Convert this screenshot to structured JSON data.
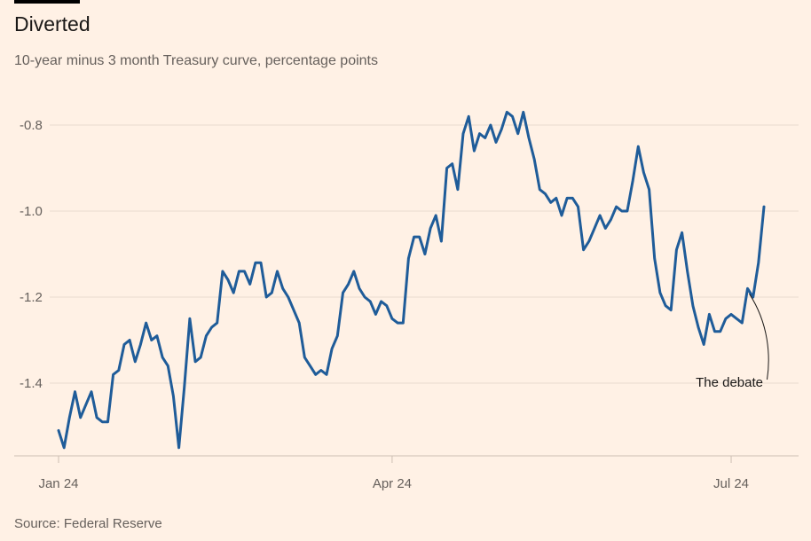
{
  "title": "Diverted",
  "subtitle": "10-year minus 3 month Treasury curve, percentage points",
  "source": "Source: Federal Reserve",
  "colors": {
    "background": "#fff1e5",
    "line": "#1f5c99",
    "grid": "#e9dccf",
    "axis": "#cdbfb3"
  },
  "chart_data": {
    "type": "line",
    "title": "Diverted",
    "subtitle": "10-year minus 3 month Treasury curve, percentage points",
    "xlabel": "",
    "ylabel": "",
    "ylim": [
      -1.56,
      -0.76
    ],
    "grid": true,
    "y_ticks": [
      {
        "value": -0.8,
        "label": "-0.8"
      },
      {
        "value": -1.0,
        "label": "-1.0"
      },
      {
        "value": -1.2,
        "label": "-1.2"
      },
      {
        "value": -1.4,
        "label": "-1.4"
      }
    ],
    "x_ticks": [
      {
        "index": 0,
        "label": "Jan 24"
      },
      {
        "index": 61,
        "label": "Apr 24"
      },
      {
        "index": 123,
        "label": "Jul 24"
      }
    ],
    "series": [
      {
        "values": [
          -1.51,
          -1.55,
          -1.48,
          -1.42,
          -1.48,
          -1.45,
          -1.42,
          -1.48,
          -1.49,
          -1.49,
          -1.38,
          -1.37,
          -1.31,
          -1.3,
          -1.35,
          -1.31,
          -1.26,
          -1.3,
          -1.29,
          -1.34,
          -1.36,
          -1.43,
          -1.55,
          -1.41,
          -1.25,
          -1.35,
          -1.34,
          -1.29,
          -1.27,
          -1.26,
          -1.14,
          -1.16,
          -1.19,
          -1.14,
          -1.14,
          -1.17,
          -1.12,
          -1.12,
          -1.2,
          -1.19,
          -1.14,
          -1.18,
          -1.2,
          -1.23,
          -1.26,
          -1.34,
          -1.36,
          -1.38,
          -1.37,
          -1.38,
          -1.32,
          -1.29,
          -1.19,
          -1.17,
          -1.14,
          -1.18,
          -1.2,
          -1.21,
          -1.24,
          -1.21,
          -1.22,
          -1.25,
          -1.26,
          -1.26,
          -1.11,
          -1.06,
          -1.06,
          -1.1,
          -1.04,
          -1.01,
          -1.07,
          -0.9,
          -0.89,
          -0.95,
          -0.82,
          -0.78,
          -0.86,
          -0.82,
          -0.83,
          -0.8,
          -0.84,
          -0.81,
          -0.77,
          -0.78,
          -0.82,
          -0.77,
          -0.83,
          -0.88,
          -0.95,
          -0.96,
          -0.98,
          -0.97,
          -1.01,
          -0.97,
          -0.97,
          -0.99,
          -1.09,
          -1.07,
          -1.04,
          -1.01,
          -1.04,
          -1.02,
          -0.99,
          -1.0,
          -1.0,
          -0.93,
          -0.85,
          -0.91,
          -0.95,
          -1.11,
          -1.19,
          -1.22,
          -1.23,
          -1.09,
          -1.05,
          -1.14,
          -1.22,
          -1.27,
          -1.31,
          -1.24,
          -1.28,
          -1.28,
          -1.25,
          -1.24,
          -1.25,
          -1.26,
          -1.18,
          -1.2,
          -1.12,
          -0.99
        ]
      }
    ],
    "annotations": [
      {
        "text": "The debate",
        "index": 126,
        "value": -1.18
      }
    ]
  }
}
